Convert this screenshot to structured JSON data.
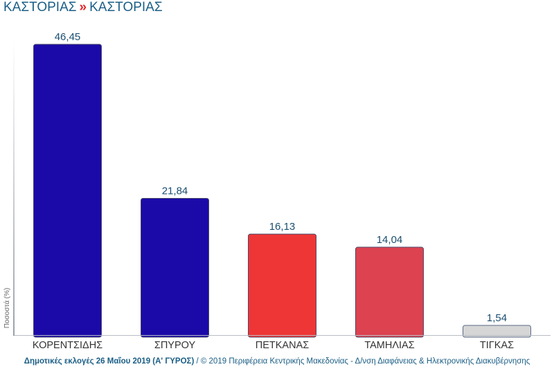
{
  "header": {
    "region": "ΚΑΣΤΟΡΙΑΣ",
    "separator": "»",
    "municipality": "ΚΑΣΤΟΡΙΑΣ"
  },
  "chart_data": {
    "type": "bar",
    "categories": [
      "ΚΟΡΕΝΤΣΙΔΗΣ",
      "ΣΠΥΡΟΥ",
      "ΠΕΤΚΑΝΑΣ",
      "ΤΑΜΗΛΙΑΣ",
      "ΤΙΓΚΑΣ"
    ],
    "values": [
      46.45,
      21.84,
      16.13,
      14.04,
      1.54
    ],
    "value_labels": [
      "46,45",
      "21,84",
      "16,13",
      "14,04",
      "1,54"
    ],
    "colors": [
      "#1c0aa8",
      "#1c0aa8",
      "#ee3636",
      "#dc4250",
      "#d6d6d6"
    ],
    "ylabel": "Ποσοστά (%)",
    "ylim": [
      0,
      46.45
    ],
    "grid": false,
    "legend": "none"
  },
  "footer": {
    "bold": "Δημοτικές εκλογές 26 Μαΐου 2019 (Α' ΓΥΡΟΣ)",
    "rest": " / © 2019 Περιφέρεια Κεντρικής Μακεδονίας - Δ/νση Διαφάνειας & Ηλεκτρονικής Διακυβέρνησης"
  }
}
